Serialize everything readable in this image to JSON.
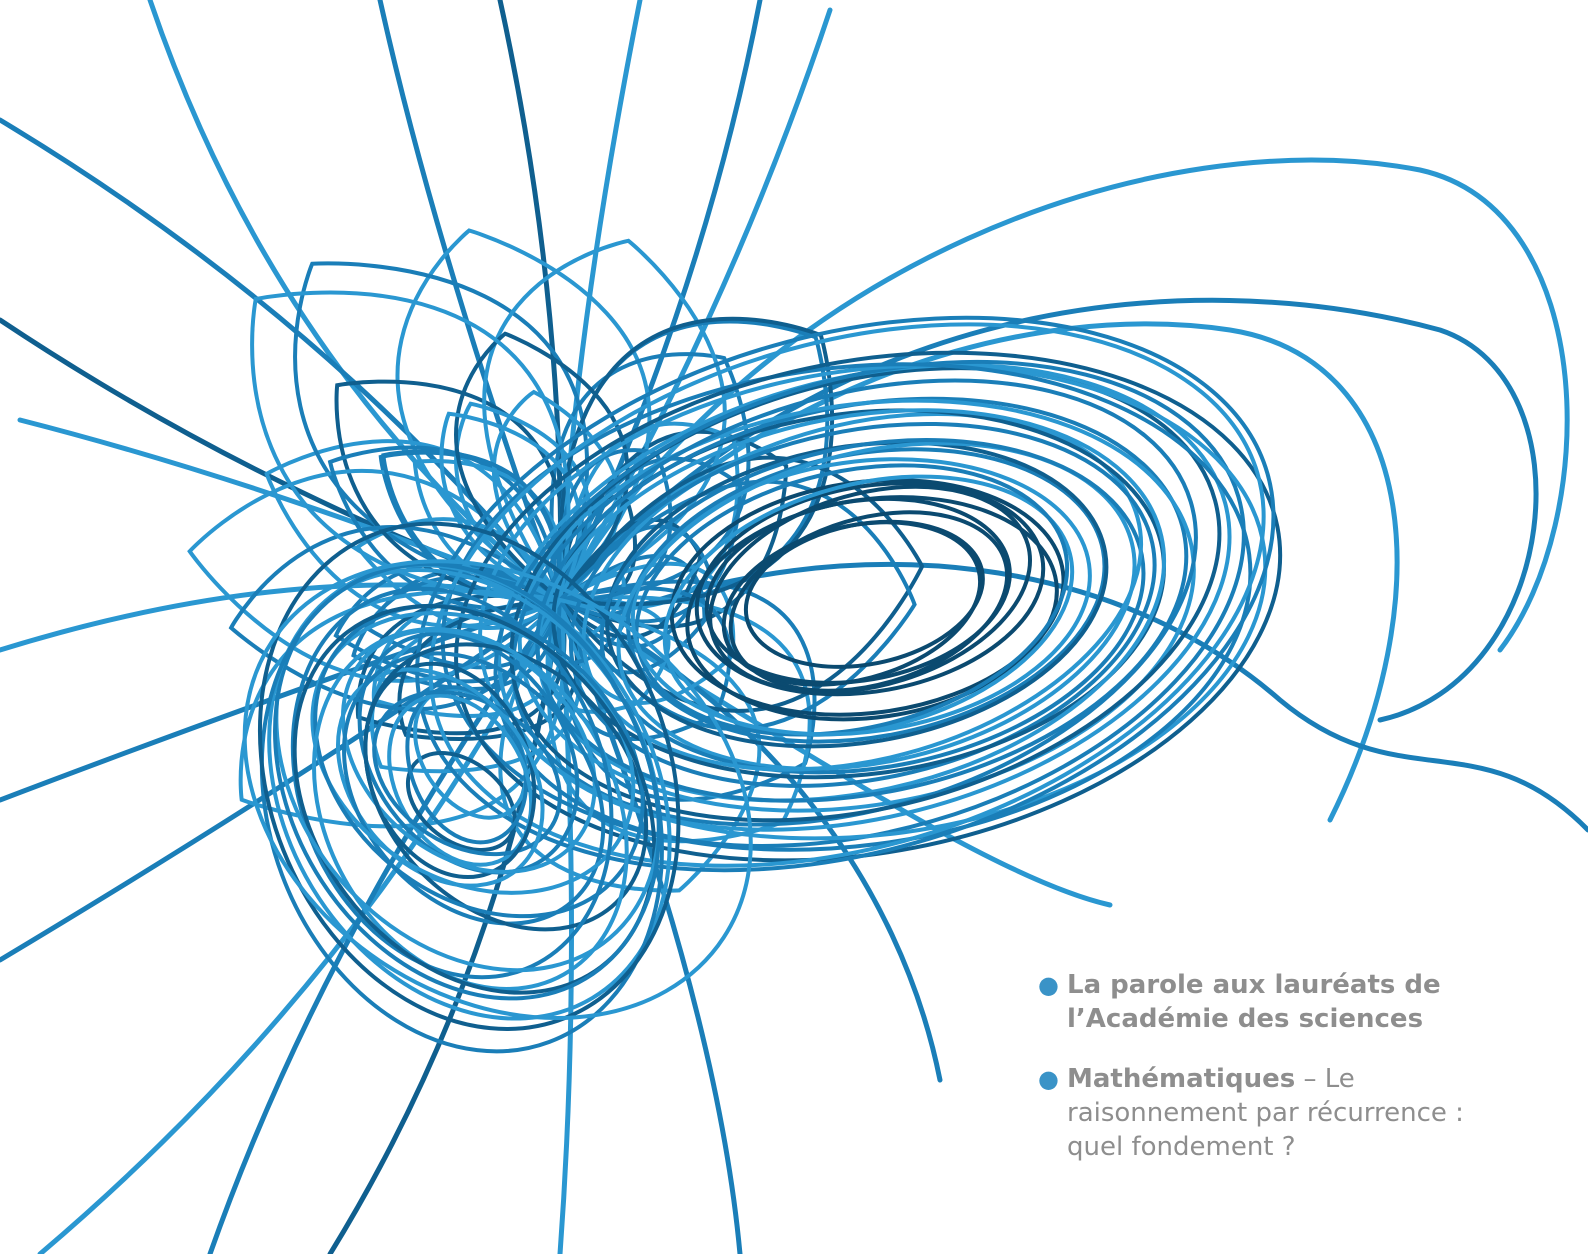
{
  "illustration": {
    "subject": "blue-wire-knot",
    "colors": {
      "wire_light": "#2a97d1",
      "wire_mid": "#1a7eb8",
      "wire_dark": "#0f5f8f",
      "wire_shadow": "#0b4a70",
      "background": "#ffffff"
    }
  },
  "bullets": [
    {
      "line1": "La parole aux lauréats de",
      "line2": "l’Académie des sciences"
    },
    {
      "title": "Mathématiques",
      "separator": " – ",
      "rest_line1": "Le",
      "line2": "raisonnement par récurrence :",
      "line3": "quel fondement ?"
    }
  ],
  "colors": {
    "bullet_dot": "#3a93c7",
    "text": "#8e8e8e"
  }
}
